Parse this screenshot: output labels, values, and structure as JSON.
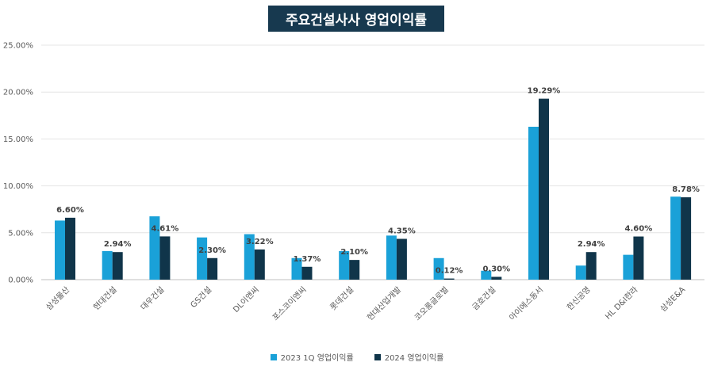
{
  "chart_data": {
    "type": "bar",
    "title": "주요건설사사 영업이익률",
    "categories": [
      "삼성물산",
      "현대건설",
      "대우건설",
      "GS건설",
      "DL이앤씨",
      "포스코이앤씨",
      "롯데건설",
      "현대산업개발",
      "코오롱글로벌",
      "금호건설",
      "아이에스동서",
      "한신공영",
      "HL D&I한라",
      "삼성E&A"
    ],
    "series": [
      {
        "name": "2023 1Q 영업이익률",
        "color": "#1aa1d8",
        "values": [
          6.3,
          3.05,
          6.75,
          4.5,
          4.85,
          2.3,
          3.05,
          4.7,
          2.3,
          0.95,
          16.3,
          1.5,
          2.65,
          8.85
        ],
        "labels": []
      },
      {
        "name": "2024 영업이익률",
        "color": "#10354a",
        "values": [
          6.6,
          2.94,
          4.61,
          2.3,
          3.22,
          1.37,
          2.1,
          4.35,
          0.12,
          0.3,
          19.29,
          2.94,
          4.6,
          8.78
        ],
        "labels": [
          "6.60%",
          "2.94%",
          "4.61%",
          "2.30%",
          "3.22%",
          "1.37%",
          "2.10%",
          "4.35%",
          "0.12%",
          "0.30%",
          "19.29%",
          "2.94%",
          "4.60%",
          "8.78%"
        ]
      }
    ],
    "ylim": [
      0,
      25
    ],
    "yticks": [
      "0.00%",
      "5.00%",
      "10.00%",
      "15.00%",
      "20.00%",
      "25.00%"
    ],
    "grid": true,
    "legend": "bottom"
  }
}
